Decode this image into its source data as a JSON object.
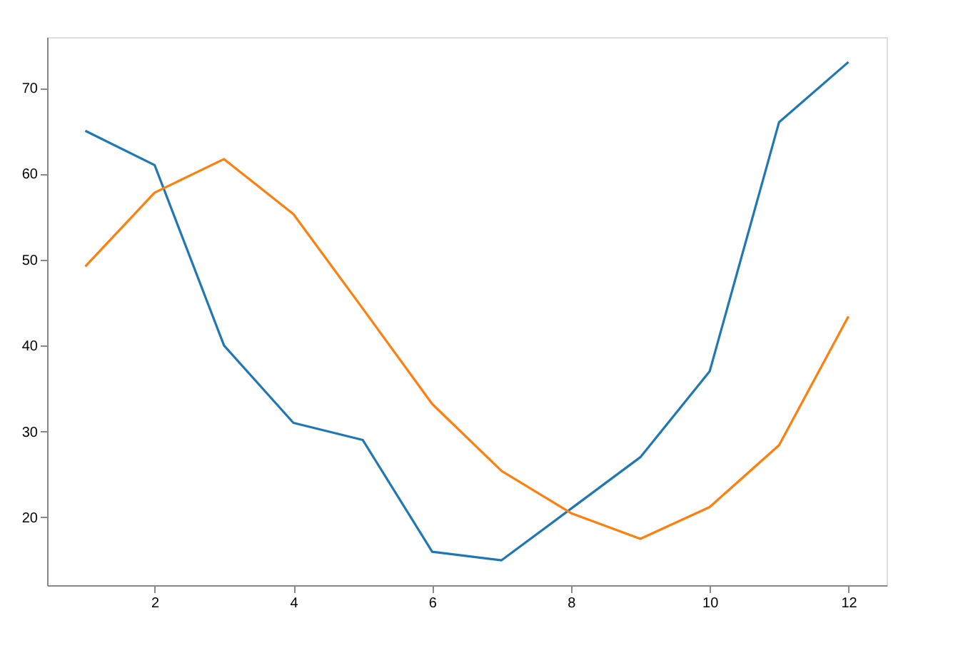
{
  "chart_data": {
    "type": "line",
    "x": [
      1,
      2,
      3,
      4,
      5,
      6,
      7,
      8,
      9,
      10,
      11,
      12
    ],
    "series": [
      {
        "color": "#1f77b4",
        "values": [
          65,
          61,
          40,
          31,
          29,
          16,
          15,
          21,
          27,
          37,
          66,
          73
        ]
      },
      {
        "color": "#ff7f0e",
        "values": [
          49.2,
          57.8,
          61.7,
          55.3,
          44.3,
          33.2,
          25.4,
          20.5,
          17.5,
          21.2,
          28.4,
          43.4
        ]
      }
    ],
    "xlim": [
      0.45,
      12.55
    ],
    "xticks": [
      2,
      4,
      6,
      8,
      10,
      12
    ],
    "ylim": [
      12.1,
      75.9
    ],
    "yticks": [
      20,
      30,
      40,
      50,
      60,
      70
    ],
    "grid": false,
    "legend": false,
    "marker": "none",
    "line_style": "solid"
  }
}
